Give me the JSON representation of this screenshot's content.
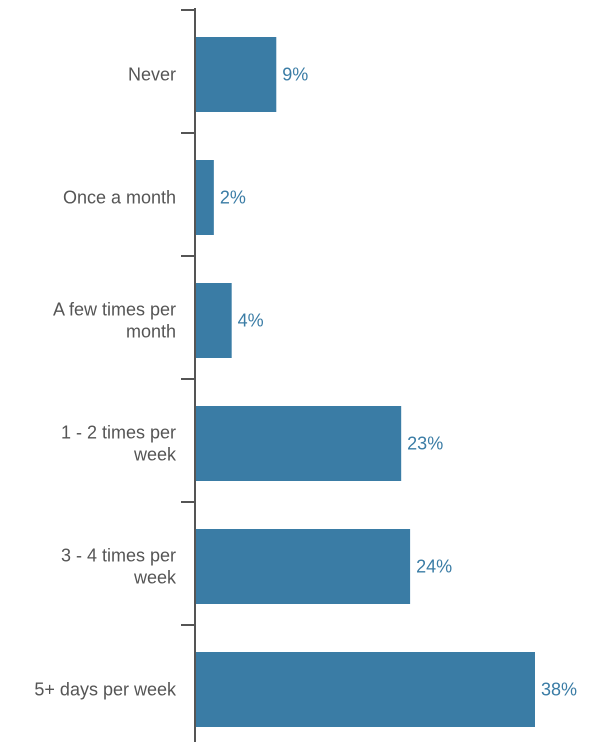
{
  "chart_data": {
    "type": "bar",
    "orientation": "horizontal",
    "categories": [
      [
        "Never"
      ],
      [
        "Once a month"
      ],
      [
        "A few times per",
        "month"
      ],
      [
        "1 - 2 times per",
        "week"
      ],
      [
        "3 - 4 times per",
        "week"
      ],
      [
        "5+ days per week"
      ]
    ],
    "values": [
      9,
      2,
      4,
      23,
      24,
      38
    ],
    "value_labels": [
      "9%",
      "2%",
      "4%",
      "23%",
      "24%",
      "38%"
    ],
    "title": "",
    "xlabel": "",
    "ylabel": "",
    "xlim": [
      0,
      38
    ],
    "grid": false,
    "legend": "none",
    "colors": {
      "bar": "#3a7ca5",
      "label": "#555555",
      "value_label": "#3a7ca5"
    }
  }
}
